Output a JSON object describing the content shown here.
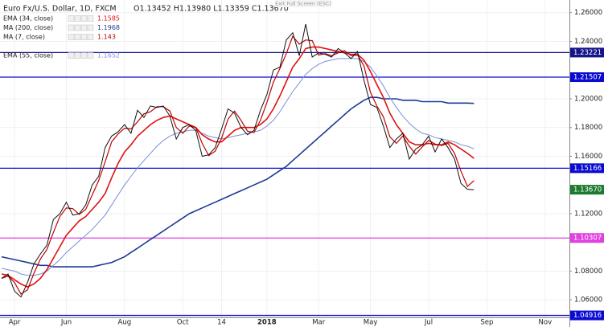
{
  "chart_data": {
    "type": "line",
    "title": "Euro Fx/U.S. Dollar, 1D, FXCM",
    "ohlc": "O1.13452 H1.13980 L1.13359 C1.13670",
    "exit_button": "Exit Full Screen (ESC)",
    "categories": [
      null,
      null,
      "Apr",
      null,
      null,
      null,
      null,
      null,
      null,
      null,
      "Jun",
      null,
      null,
      null,
      null,
      null,
      null,
      null,
      null,
      "Aug",
      null,
      null,
      null,
      null,
      null,
      null,
      null,
      null,
      "Oct",
      null,
      null,
      null,
      null,
      null,
      "14",
      null,
      null,
      null,
      null,
      null,
      null,
      "2018",
      null,
      null,
      null,
      null,
      null,
      null,
      null,
      "Mar",
      null,
      null,
      null,
      null,
      null,
      null,
      null,
      "May",
      null,
      null,
      null,
      null,
      null,
      null,
      null,
      null,
      "Jul",
      null,
      null,
      null,
      null,
      null,
      null,
      null,
      null,
      "Sep",
      null,
      null,
      null,
      null,
      null,
      null,
      null,
      null,
      "Nov",
      null,
      null,
      null
    ],
    "color": "#111111",
    "values": [
      1.075,
      1.078,
      1.066,
      1.062,
      1.072,
      1.085,
      1.092,
      1.098,
      1.116,
      1.12,
      1.128,
      1.119,
      1.12,
      1.126,
      1.14,
      1.146,
      1.166,
      1.174,
      1.177,
      1.182,
      1.176,
      1.192,
      1.187,
      1.195,
      1.194,
      1.195,
      1.188,
      1.172,
      1.18,
      1.182,
      1.178,
      1.16,
      1.161,
      1.166,
      1.179,
      1.193,
      1.19,
      1.18,
      1.175,
      1.178,
      1.192,
      1.203,
      1.22,
      1.222,
      1.241,
      1.246,
      1.23,
      1.252,
      1.229,
      1.232,
      1.231,
      1.229,
      1.235,
      1.232,
      1.228,
      1.233,
      1.213,
      1.196,
      1.194,
      1.181,
      1.166,
      1.172,
      1.176,
      1.158,
      1.165,
      1.168,
      1.174,
      1.163,
      1.172,
      1.166,
      1.158,
      1.141,
      1.137,
      1.1367,
      null,
      null,
      null,
      null,
      null,
      null,
      null,
      null,
      null,
      null,
      null,
      null,
      null,
      null
    ],
    "series": [
      {
        "name": "MA (200, close)",
        "color": "#1f3a93",
        "width": 1.6,
        "legend_value": 1.1968,
        "values": [
          1.09,
          1.089,
          1.088,
          1.087,
          1.086,
          1.085,
          1.084,
          1.084,
          1.083,
          1.083,
          1.083,
          1.083,
          1.083,
          1.083,
          1.083,
          1.084,
          1.085,
          1.086,
          1.088,
          1.09,
          1.093,
          1.096,
          1.099,
          1.102,
          1.105,
          1.108,
          1.111,
          1.114,
          1.117,
          1.12,
          1.122,
          1.124,
          1.126,
          1.128,
          1.13,
          1.132,
          1.134,
          1.136,
          1.138,
          1.14,
          1.142,
          1.144,
          1.147,
          1.15,
          1.153,
          1.157,
          1.161,
          1.165,
          1.169,
          1.173,
          1.177,
          1.181,
          1.185,
          1.189,
          1.193,
          1.196,
          1.199,
          1.201,
          1.201,
          1.2,
          1.2,
          1.2,
          1.199,
          1.199,
          1.199,
          1.198,
          1.198,
          1.198,
          1.198,
          1.197,
          1.197,
          1.197,
          1.197,
          1.1968,
          null,
          null,
          null,
          null,
          null,
          null,
          null,
          null,
          null,
          null,
          null,
          null,
          null,
          null
        ]
      },
      {
        "name": "EMA (55, close)",
        "color": "#7b8fd6",
        "width": 1,
        "legend_value": 1.1652,
        "values": [
          1.082,
          1.081,
          1.08,
          1.078,
          1.077,
          1.077,
          1.078,
          1.08,
          1.084,
          1.088,
          1.093,
          1.097,
          1.101,
          1.105,
          1.109,
          1.114,
          1.119,
          1.126,
          1.133,
          1.14,
          1.146,
          1.152,
          1.157,
          1.162,
          1.167,
          1.171,
          1.174,
          1.176,
          1.177,
          1.178,
          1.178,
          1.176,
          1.174,
          1.173,
          1.172,
          1.173,
          1.174,
          1.175,
          1.176,
          1.177,
          1.178,
          1.181,
          1.185,
          1.191,
          1.198,
          1.205,
          1.211,
          1.217,
          1.221,
          1.224,
          1.226,
          1.227,
          1.228,
          1.228,
          1.228,
          1.228,
          1.226,
          1.222,
          1.216,
          1.209,
          1.201,
          1.194,
          1.188,
          1.183,
          1.179,
          1.176,
          1.175,
          1.173,
          1.172,
          1.171,
          1.17,
          1.168,
          1.167,
          1.1652,
          null,
          null,
          null,
          null,
          null,
          null,
          null,
          null,
          null,
          null,
          null,
          null,
          null,
          null
        ]
      },
      {
        "name": "EMA (34, close)",
        "color": "#e01010",
        "width": 1.6,
        "legend_value": 1.1585,
        "values": [
          1.078,
          1.077,
          1.074,
          1.071,
          1.069,
          1.071,
          1.075,
          1.081,
          1.089,
          1.097,
          1.105,
          1.11,
          1.115,
          1.118,
          1.123,
          1.128,
          1.134,
          1.145,
          1.155,
          1.163,
          1.168,
          1.174,
          1.178,
          1.182,
          1.185,
          1.187,
          1.188,
          1.186,
          1.184,
          1.182,
          1.18,
          1.175,
          1.172,
          1.17,
          1.17,
          1.174,
          1.178,
          1.18,
          1.18,
          1.18,
          1.182,
          1.186,
          1.193,
          1.202,
          1.212,
          1.222,
          1.228,
          1.235,
          1.236,
          1.236,
          1.235,
          1.234,
          1.233,
          1.232,
          1.231,
          1.231,
          1.227,
          1.219,
          1.21,
          1.201,
          1.19,
          1.182,
          1.176,
          1.17,
          1.168,
          1.168,
          1.169,
          1.168,
          1.168,
          1.17,
          1.168,
          1.165,
          1.162,
          1.1585,
          null,
          null,
          null,
          null,
          null,
          null,
          null,
          null,
          null,
          null,
          null,
          null,
          null,
          null
        ]
      },
      {
        "name": "MA (7, close)",
        "color": "#c00000",
        "width": 1.2,
        "legend_value": 1.143,
        "values": [
          1.075,
          1.0765,
          1.072,
          1.064,
          1.067,
          1.0785,
          1.0885,
          1.095,
          1.107,
          1.118,
          1.124,
          1.1235,
          1.1195,
          1.123,
          1.133,
          1.143,
          1.156,
          1.17,
          1.1755,
          1.1795,
          1.179,
          1.184,
          1.1895,
          1.191,
          1.1945,
          1.1945,
          1.1915,
          1.18,
          1.176,
          1.181,
          1.18,
          1.169,
          1.1605,
          1.1635,
          1.1725,
          1.186,
          1.1915,
          1.185,
          1.1775,
          1.1765,
          1.185,
          1.1975,
          1.2115,
          1.221,
          1.2315,
          1.2435,
          1.238,
          1.241,
          1.2405,
          1.2305,
          1.2315,
          1.23,
          1.232,
          1.2335,
          1.23,
          1.2305,
          1.223,
          1.2045,
          1.195,
          1.1875,
          1.1735,
          1.169,
          1.174,
          1.167,
          1.1615,
          1.1665,
          1.171,
          1.1685,
          1.1675,
          1.169,
          1.162,
          1.1495,
          1.139,
          1.143,
          null,
          null,
          null,
          null,
          null,
          null,
          null,
          null,
          null,
          null,
          null,
          null,
          null,
          null
        ]
      }
    ],
    "ylim": [
      1.0478,
      1.2688
    ],
    "yticks": [
      {
        "value": 1.26,
        "label": "1.26000"
      },
      {
        "value": 1.24,
        "label": "1.24000"
      },
      {
        "value": 1.2,
        "label": "1.20000"
      },
      {
        "value": 1.18,
        "label": "1.18000"
      },
      {
        "value": 1.16,
        "label": "1.16000"
      },
      {
        "value": 1.12,
        "label": "1.12000"
      },
      {
        "value": 1.08,
        "label": "1.08000"
      },
      {
        "value": 1.06,
        "label": "1.06000"
      }
    ],
    "grid": true,
    "levels": [
      {
        "value": 1.23221,
        "color": "#15158a"
      },
      {
        "value": 1.21507,
        "color": "#0a0ad0"
      },
      {
        "value": 1.15166,
        "color": "#0a0ad0"
      },
      {
        "value": 1.10307,
        "color": "#e040e0"
      },
      {
        "value": 1.04916,
        "color": "#0a0ad0"
      }
    ],
    "last_price": {
      "value": 1.1367,
      "label": "1.13670",
      "color": "#1d7a2e"
    }
  }
}
